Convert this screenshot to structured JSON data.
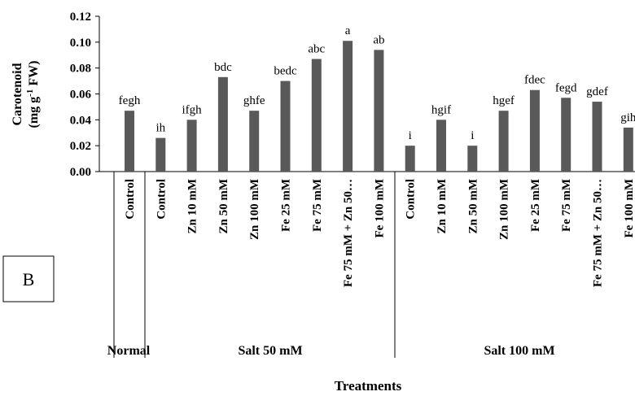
{
  "chart_data": {
    "type": "bar",
    "y_label": [
      "Carotenoid",
      "(mg g",
      "-1",
      " FW)"
    ],
    "x_label": "Treatments",
    "panel": "B",
    "categories": [
      "Control",
      "Control",
      "Zn 10 mM",
      "Zn 50 mM",
      "Zn 100 mM",
      "Fe 25 mM",
      "Fe 75 mM",
      "Fe 75 mM + Zn 50…",
      "Fe 100 mM",
      "Control",
      "Zn 10 mM",
      "Zn 50 mM",
      "Zn 100 mM",
      "Fe 25 mM",
      "Fe 75 mM",
      "Fe 75 mM + Zn 50…",
      "Fe 100 mM"
    ],
    "values": [
      0.047,
      0.026,
      0.04,
      0.073,
      0.047,
      0.07,
      0.087,
      0.101,
      0.094,
      0.02,
      0.04,
      0.02,
      0.047,
      0.063,
      0.057,
      0.054,
      0.034
    ],
    "annotations": [
      "fegh",
      "ih",
      "ifgh",
      "bdc",
      "ghfe",
      "bedc",
      "abc",
      "a",
      "ab",
      "i",
      "hgif",
      "i",
      "hgef",
      "fdec",
      "fegd",
      "gdef",
      "gih"
    ],
    "groups": [
      "Normal",
      "Salt 50 mM",
      "Salt 100 mM"
    ],
    "color": "#595959",
    "ylim": [
      0,
      0.12
    ],
    "yticks": [
      {
        "value": 0,
        "label": "0.00"
      },
      {
        "value": 0.02,
        "label": "0.02"
      },
      {
        "value": 0.04,
        "label": "0.04"
      },
      {
        "value": 0.06,
        "label": "0.06"
      },
      {
        "value": 0.08,
        "label": "0.08"
      },
      {
        "value": 0.1,
        "label": "0.10"
      },
      {
        "value": 0.12,
        "label": "0.12"
      }
    ]
  }
}
